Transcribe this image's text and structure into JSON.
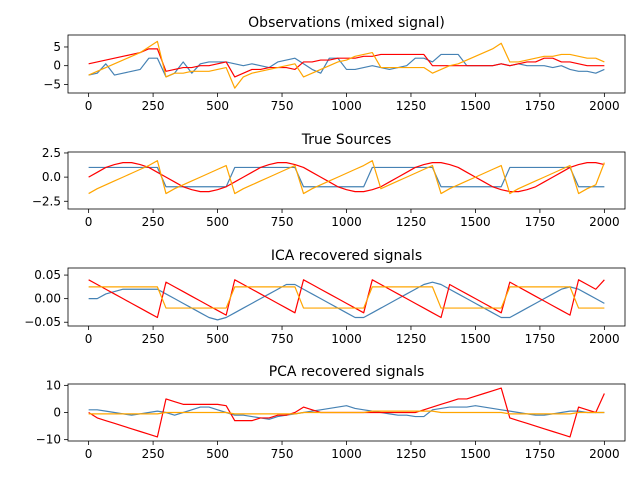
{
  "chart_data": [
    {
      "type": "line",
      "title": "Observations (mixed signal)",
      "xlim": [
        -80,
        2080
      ],
      "ylim": [
        -7.3,
        8.2
      ],
      "xticks": [
        0,
        250,
        500,
        750,
        1000,
        1250,
        1500,
        1750,
        2000
      ],
      "yticks": [
        -5,
        0,
        5
      ],
      "series": [
        {
          "color": "#4682B4",
          "values": [
            -2.5,
            -2,
            0.5,
            -2.5,
            -2,
            -1.5,
            -1,
            2,
            2,
            -3,
            -2,
            1,
            -2,
            0.5,
            1,
            1,
            1,
            0.5,
            0,
            0.5,
            0,
            -0.5,
            1,
            1.5,
            2,
            0.5,
            -1,
            -2,
            2,
            2,
            -1,
            -1,
            -0.5,
            0,
            -0.5,
            -1,
            -0.5,
            0,
            2,
            2,
            1,
            3,
            3,
            3,
            0,
            0,
            0,
            0,
            0.5,
            0,
            0.5,
            0,
            0,
            0,
            -0.5,
            0,
            -1,
            -1.5,
            -1.5,
            -2,
            -1
          ]
        },
        {
          "color": "#FF0000",
          "values": [
            0.5,
            1,
            1.5,
            2,
            2.5,
            3,
            3.5,
            4.5,
            4.5,
            -1.5,
            -1,
            -0.5,
            -0.5,
            0,
            0,
            0.5,
            1,
            -3,
            -2,
            -1,
            -1,
            -0.5,
            -0.5,
            -0.5,
            -1,
            1,
            1,
            1.5,
            1.5,
            2,
            2,
            2,
            2.5,
            2.5,
            3,
            3,
            3,
            3,
            3,
            3,
            0,
            0,
            0,
            0,
            0,
            0,
            0,
            0,
            0.5,
            0,
            0.5,
            1,
            1,
            2,
            2,
            1,
            1,
            0.5,
            0,
            0,
            0
          ]
        },
        {
          "color": "#FFA500",
          "values": [
            -2.5,
            -1.5,
            -0.5,
            0.5,
            1.5,
            2.5,
            3.5,
            5,
            6.5,
            -3,
            -2,
            -2,
            -1.5,
            -1.5,
            -1.5,
            -1,
            -0.5,
            -6,
            -3,
            -2,
            -1.5,
            -1,
            -0.5,
            0,
            0.5,
            -3,
            -2,
            -1,
            0,
            1,
            1.5,
            2.5,
            3,
            3.5,
            -0.5,
            -0.5,
            -0.5,
            -0.5,
            -0.5,
            -0.5,
            -2,
            -1,
            0,
            0.5,
            1.5,
            2.5,
            3.5,
            4.5,
            6,
            1,
            1,
            1.5,
            2,
            2.5,
            2.5,
            3,
            3,
            2.5,
            2,
            2,
            1
          ]
        }
      ]
    },
    {
      "type": "line",
      "title": "True Sources",
      "xlim": [
        -80,
        2080
      ],
      "ylim": [
        -3.3,
        2.6
      ],
      "xticks": [
        0,
        250,
        500,
        750,
        1000,
        1250,
        1500,
        1750,
        2000
      ],
      "yticks": [
        -2.5,
        0.0,
        2.5
      ],
      "ytick_labels": [
        "−2.5",
        "0.0",
        "2.5"
      ],
      "series": [
        {
          "color": "#4682B4",
          "values": [
            1,
            1,
            1,
            1,
            1,
            1,
            1,
            1,
            1,
            -1,
            -1,
            -1,
            -1,
            -1,
            -1,
            -1,
            -1,
            1,
            1,
            1,
            1,
            1,
            1,
            1,
            1,
            -1,
            -1,
            -1,
            -1,
            -1,
            -1,
            -1,
            -1,
            1,
            1,
            1,
            1,
            1,
            1,
            1,
            1,
            -1,
            -1,
            -1,
            -1,
            -1,
            -1,
            -1,
            -1,
            1,
            1,
            1,
            1,
            1,
            1,
            1,
            1,
            -1,
            -1,
            -1,
            -1
          ]
        },
        {
          "color": "#FF0000",
          "values": [
            0,
            0.5,
            1,
            1.3,
            1.5,
            1.5,
            1.3,
            1,
            0.5,
            0,
            -0.5,
            -1,
            -1.3,
            -1.5,
            -1.5,
            -1.3,
            -1,
            -0.5,
            0,
            0.5,
            1,
            1.3,
            1.5,
            1.5,
            1.3,
            1,
            0.5,
            0,
            -0.5,
            -1,
            -1.3,
            -1.5,
            -1.5,
            -1.3,
            -1,
            -0.5,
            0,
            0.5,
            1,
            1.3,
            1.5,
            1.5,
            1.3,
            1,
            0.5,
            0,
            -0.5,
            -1,
            -1.3,
            -1.5,
            -1.5,
            -1.3,
            -1,
            -0.5,
            0,
            0.5,
            1,
            1.3,
            1.5,
            1.5,
            1.3
          ]
        },
        {
          "color": "#FFA500",
          "values": [
            -1.7,
            -1.2,
            -0.8,
            -0.4,
            0,
            0.4,
            0.8,
            1.2,
            1.7,
            -1.7,
            -1.2,
            -0.8,
            -0.4,
            0,
            0.4,
            0.8,
            1.2,
            -1.7,
            -1.2,
            -0.8,
            -0.4,
            0,
            0.4,
            0.8,
            1.2,
            -1.7,
            -1.2,
            -0.8,
            -0.4,
            0,
            0.4,
            0.8,
            1.2,
            1.7,
            -1.2,
            -0.8,
            -0.4,
            0,
            0.4,
            0.8,
            1.2,
            -1.7,
            -1.2,
            -0.8,
            -0.4,
            0,
            0.4,
            0.8,
            1.2,
            -1.7,
            -1.2,
            -0.8,
            -0.4,
            0,
            0.4,
            0.8,
            1.2,
            -1.7,
            -1.2,
            -0.8,
            1.5
          ]
        }
      ]
    },
    {
      "type": "line",
      "title": "ICA recovered signals",
      "xlim": [
        -80,
        2080
      ],
      "ylim": [
        -0.058,
        0.065
      ],
      "xticks": [
        0,
        250,
        500,
        750,
        1000,
        1250,
        1500,
        1750,
        2000
      ],
      "yticks": [
        -0.05,
        0.0,
        0.05
      ],
      "ytick_labels": [
        "−0.05",
        "0.00",
        "0.05"
      ],
      "series": [
        {
          "color": "#4682B4",
          "values": [
            0,
            0,
            0.01,
            0.015,
            0.02,
            0.02,
            0.02,
            0.02,
            0.02,
            0.01,
            0,
            -0.01,
            -0.02,
            -0.03,
            -0.04,
            -0.045,
            -0.04,
            -0.03,
            -0.02,
            -0.01,
            0,
            0.01,
            0.02,
            0.03,
            0.03,
            0.02,
            0.01,
            0,
            -0.01,
            -0.02,
            -0.03,
            -0.04,
            -0.04,
            -0.03,
            -0.02,
            -0.01,
            0,
            0.01,
            0.02,
            0.03,
            0.035,
            0.03,
            0.02,
            0.01,
            0,
            -0.01,
            -0.02,
            -0.03,
            -0.04,
            -0.04,
            -0.03,
            -0.02,
            -0.01,
            0,
            0.01,
            0.02,
            0.025,
            0.02,
            0.01,
            0,
            -0.01
          ]
        },
        {
          "color": "#FF0000",
          "values": [
            0.04,
            0.03,
            0.02,
            0.01,
            0,
            -0.01,
            -0.02,
            -0.03,
            -0.04,
            0.035,
            0.025,
            0.015,
            0.005,
            -0.005,
            -0.015,
            -0.025,
            -0.035,
            0.04,
            0.03,
            0.02,
            0.01,
            0,
            -0.01,
            -0.02,
            -0.03,
            0.04,
            0.03,
            0.02,
            0.01,
            0,
            -0.01,
            -0.02,
            -0.03,
            0.04,
            0.03,
            0.02,
            0.01,
            0,
            -0.01,
            -0.02,
            -0.03,
            -0.04,
            0.03,
            0.02,
            0.01,
            0,
            -0.01,
            -0.02,
            -0.03,
            0.035,
            0.025,
            0.015,
            0.005,
            -0.005,
            -0.015,
            -0.025,
            -0.035,
            0.04,
            0.03,
            0.02,
            0.04
          ]
        },
        {
          "color": "#FFA500",
          "values": [
            0.025,
            0.025,
            0.025,
            0.025,
            0.025,
            0.025,
            0.025,
            0.025,
            0.025,
            -0.02,
            -0.02,
            -0.02,
            -0.02,
            -0.02,
            -0.02,
            -0.02,
            -0.02,
            0.025,
            0.025,
            0.025,
            0.025,
            0.025,
            0.025,
            0.025,
            0.025,
            -0.02,
            -0.02,
            -0.02,
            -0.02,
            -0.02,
            -0.02,
            -0.02,
            -0.02,
            0.025,
            0.025,
            0.025,
            0.025,
            0.025,
            0.025,
            0.025,
            0.025,
            -0.02,
            -0.02,
            -0.02,
            -0.02,
            -0.02,
            -0.02,
            -0.02,
            -0.02,
            0.025,
            0.025,
            0.025,
            0.025,
            0.025,
            0.025,
            0.025,
            0.025,
            -0.02,
            -0.02,
            -0.02,
            -0.02
          ]
        }
      ]
    },
    {
      "type": "line",
      "title": "PCA recovered signals",
      "xlim": [
        -80,
        2080
      ],
      "ylim": [
        -10.5,
        10.5
      ],
      "xticks": [
        0,
        250,
        500,
        750,
        1000,
        1250,
        1500,
        1750,
        2000
      ],
      "yticks": [
        -10,
        0,
        10
      ],
      "ytick_labels": [
        "−10",
        "0",
        "10"
      ],
      "series": [
        {
          "color": "#4682B4",
          "values": [
            1,
            1,
            0.5,
            0,
            -0.5,
            -1,
            -0.5,
            0,
            0.5,
            0,
            -1,
            0,
            1,
            2,
            2,
            1,
            0,
            -1,
            -1,
            -1.5,
            -2,
            -2.5,
            -1.5,
            -1,
            -0.5,
            0,
            0.5,
            1,
            1.5,
            2,
            2.5,
            1.5,
            1,
            0.5,
            0,
            -0.5,
            -1,
            -1,
            -1.5,
            -1.5,
            1,
            1.5,
            2,
            2,
            2,
            2.5,
            2,
            1.5,
            1,
            0.5,
            0,
            -0.5,
            -1,
            -1,
            -0.5,
            0,
            0.5,
            0.5,
            0,
            0,
            0
          ]
        },
        {
          "color": "#FF0000",
          "values": [
            0,
            -2,
            -3,
            -4,
            -5,
            -6,
            -7,
            -8,
            -9,
            5,
            4,
            3,
            3,
            3,
            3,
            3,
            2.5,
            -3,
            -3,
            -3,
            -2,
            -2,
            -1,
            -1,
            0,
            2,
            1,
            0,
            0,
            0,
            0,
            0,
            0,
            0,
            0,
            0,
            0,
            0,
            0,
            1,
            2,
            3,
            4,
            5,
            5,
            6,
            7,
            8,
            9,
            -2,
            -3,
            -4,
            -5,
            -6,
            -7,
            -8,
            -9,
            2,
            1,
            0,
            7
          ]
        },
        {
          "color": "#FFA500",
          "values": [
            -0.5,
            -0.5,
            -0.5,
            -0.5,
            -0.5,
            -0.5,
            -0.5,
            -0.5,
            -0.5,
            0,
            0,
            0,
            0,
            0,
            0,
            0,
            0,
            -0.5,
            -0.5,
            -0.5,
            -0.5,
            -0.5,
            -0.5,
            -0.5,
            -0.5,
            0,
            0,
            0,
            0,
            0,
            0,
            0,
            0,
            0.5,
            0.5,
            0.5,
            0.5,
            0.5,
            0.5,
            0.5,
            0.5,
            0,
            0,
            0,
            0,
            0,
            0,
            0,
            0,
            -0.5,
            -0.5,
            -0.5,
            -0.5,
            -0.5,
            -0.5,
            -0.5,
            -0.5,
            0,
            0,
            0,
            0
          ]
        }
      ]
    }
  ]
}
